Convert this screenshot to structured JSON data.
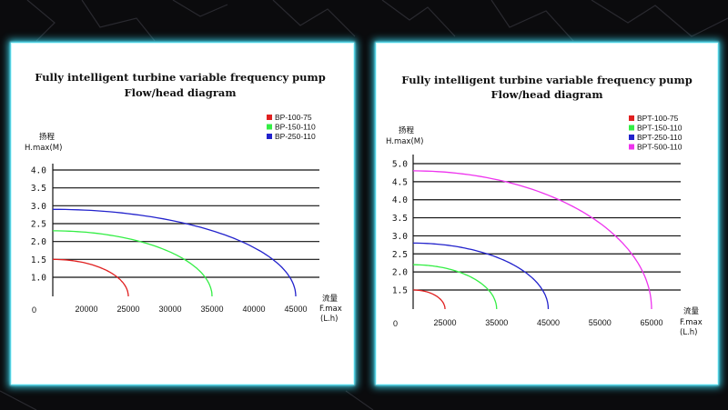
{
  "chart_data": [
    {
      "type": "line",
      "title": "Fully intelligent turbine variable frequency pump",
      "subtitle": "Flow/head diagram",
      "ylabel_cn": "扬程",
      "ylabel": "H.max(M)",
      "xlabel_cn": "流量",
      "xlabel": "F.max",
      "xunit": "(L.h)",
      "origin_label": "0",
      "y_ticks": [
        1.0,
        1.5,
        2.0,
        2.5,
        3.0,
        3.5,
        4.0
      ],
      "y_tick_labels": [
        "1.0",
        "1.5",
        "2.0",
        "2.5",
        "3.0",
        "3.5",
        "4.0"
      ],
      "x_ticks": [
        20000,
        25000,
        30000,
        35000,
        40000,
        45000
      ],
      "x_tick_labels": [
        "20000",
        "25000",
        "30000",
        "35000",
        "40000",
        "45000"
      ],
      "xlim": [
        10000,
        50000
      ],
      "ylim": [
        0.5,
        4.2
      ],
      "grid": "horizontal",
      "legend_position": "top-right",
      "series": [
        {
          "name": "BP-100-75",
          "color": "#e02020",
          "max_head": 1.5,
          "max_flow": 25000
        },
        {
          "name": "BP-150-110",
          "color": "#33ee44",
          "max_head": 2.3,
          "max_flow": 35000
        },
        {
          "name": "BP-250-110",
          "color": "#2222cc",
          "max_head": 2.9,
          "max_flow": 45000
        }
      ]
    },
    {
      "type": "line",
      "title": "Fully intelligent turbine variable frequency pump",
      "subtitle": "Flow/head diagram",
      "ylabel_cn": "扬程",
      "ylabel": "H.max(M)",
      "xlabel_cn": "流量",
      "xlabel": "F.max",
      "xunit": "(L.h)",
      "origin_label": "0",
      "y_ticks": [
        1.5,
        2.0,
        2.5,
        3.0,
        3.5,
        4.0,
        4.5,
        5.0
      ],
      "y_tick_labels": [
        "1.5",
        "2.0",
        "2.5",
        "3.0",
        "3.5",
        "4.0",
        "4.5",
        "5.0"
      ],
      "x_ticks": [
        25000,
        35000,
        45000,
        55000,
        65000
      ],
      "x_tick_labels": [
        "25000",
        "35000",
        "45000",
        "55000",
        "65000"
      ],
      "xlim": [
        20000,
        70000
      ],
      "ylim": [
        1.2,
        5.2
      ],
      "grid": "horizontal",
      "legend_position": "top-right",
      "series": [
        {
          "name": "BPT-100-75",
          "color": "#e02020",
          "max_head": 1.5,
          "max_flow": 25000
        },
        {
          "name": "BPT-150-110",
          "color": "#33ee44",
          "max_head": 2.2,
          "max_flow": 35000
        },
        {
          "name": "BPT-250-110",
          "color": "#2222cc",
          "max_head": 2.8,
          "max_flow": 45000
        },
        {
          "name": "BPT-500-110",
          "color": "#ee33ee",
          "max_head": 4.8,
          "max_flow": 65000
        }
      ]
    }
  ]
}
